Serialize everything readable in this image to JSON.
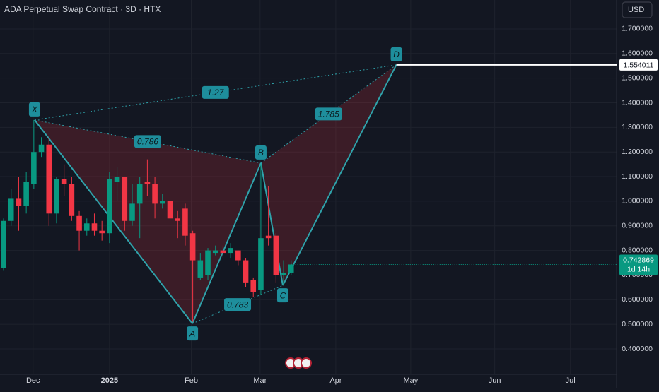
{
  "header": {
    "title": "ADA Perpetual Swap Contract · 3D · HTX",
    "currency": "USD"
  },
  "chart_data": {
    "type": "candlestick",
    "xlim": [
      -0.47,
      81.0
    ],
    "ylim": [
      0.2967,
      1.8175
    ],
    "xticks": [
      {
        "value": 3.9,
        "label": "Dec"
      },
      {
        "value": 14.0,
        "label": "2025"
      },
      {
        "value": 24.8,
        "label": "Feb"
      },
      {
        "value": 33.9,
        "label": "Mar"
      },
      {
        "value": 43.9,
        "label": "Apr"
      },
      {
        "value": 53.8,
        "label": "May"
      },
      {
        "value": 64.9,
        "label": "Jun"
      },
      {
        "value": 74.9,
        "label": "Jul"
      }
    ],
    "yticks": [
      {
        "value": 0.4,
        "label": "0.400000"
      },
      {
        "value": 0.5,
        "label": "0.500000"
      },
      {
        "value": 0.6,
        "label": "0.600000"
      },
      {
        "value": 0.7,
        "label": "0.700000"
      },
      {
        "value": 0.8,
        "label": "0.800000"
      },
      {
        "value": 0.9,
        "label": "0.900000"
      },
      {
        "value": 1.0,
        "label": "1.000000"
      },
      {
        "value": 1.1,
        "label": "1.100000"
      },
      {
        "value": 1.2,
        "label": "1.200000"
      },
      {
        "value": 1.3,
        "label": "1.300000"
      },
      {
        "value": 1.4,
        "label": "1.400000"
      },
      {
        "value": 1.5,
        "label": "1.500000"
      },
      {
        "value": 1.6,
        "label": "1.600000"
      },
      {
        "value": 1.7,
        "label": "1.700000"
      }
    ],
    "open": [
      0.73,
      0.92,
      1.01,
      0.98,
      1.07,
      1.2,
      1.23,
      0.95,
      1.09,
      1.07,
      0.94,
      0.88,
      0.91,
      0.88,
      0.87,
      1.08,
      1.1,
      0.92,
      0.99,
      1.08,
      1.07,
      0.99,
      1.0,
      0.93,
      0.97,
      0.87,
      0.69,
      0.7,
      0.79,
      0.8,
      0.79,
      0.8,
      0.76,
      0.68,
      0.64,
      0.86,
      0.86,
      0.7,
      0.71
    ],
    "high": [
      0.93,
      1.05,
      1.1,
      1.12,
      1.33,
      1.26,
      1.26,
      1.1,
      1.15,
      1.1,
      0.96,
      0.93,
      0.95,
      0.92,
      1.12,
      1.14,
      1.1,
      1.07,
      1.1,
      1.17,
      1.1,
      1.03,
      1.04,
      0.96,
      0.99,
      0.88,
      0.79,
      0.81,
      0.82,
      0.82,
      0.83,
      0.8,
      0.77,
      0.69,
      1.15,
      1.06,
      0.87,
      0.76,
      0.76
    ],
    "low": [
      0.72,
      0.9,
      0.88,
      0.95,
      1.05,
      1.18,
      0.9,
      0.91,
      1.02,
      0.92,
      0.8,
      0.86,
      0.86,
      0.84,
      0.83,
      1.0,
      0.88,
      0.9,
      0.85,
      1.02,
      0.93,
      0.97,
      0.88,
      0.85,
      0.82,
      0.51,
      0.68,
      0.68,
      0.78,
      0.77,
      0.77,
      0.74,
      0.65,
      0.61,
      0.62,
      0.82,
      0.67,
      0.66,
      0.7
    ],
    "close": [
      0.92,
      1.01,
      0.98,
      1.08,
      1.2,
      1.23,
      0.95,
      1.09,
      1.07,
      0.94,
      0.88,
      0.91,
      0.88,
      0.87,
      1.09,
      1.1,
      0.92,
      0.99,
      1.07,
      1.07,
      0.99,
      1.0,
      0.93,
      0.92,
      0.86,
      0.76,
      0.76,
      0.8,
      0.8,
      0.79,
      0.81,
      0.76,
      0.67,
      0.63,
      0.85,
      0.85,
      0.7,
      0.71,
      0.743
    ],
    "up_color": "#089981",
    "down_color": "#f23645",
    "pattern": {
      "color": "#2fa3ab",
      "points": [
        {
          "label": "X",
          "x": 4.1,
          "y": 1.33
        },
        {
          "label": "A",
          "x": 24.95,
          "y": 0.503
        },
        {
          "label": "B",
          "x": 34.0,
          "y": 1.155
        },
        {
          "label": "C",
          "x": 36.9,
          "y": 0.658
        },
        {
          "label": "D",
          "x": 51.9,
          "y": 1.554011
        }
      ],
      "ratios": [
        1.27,
        0.786,
        1.785,
        0.783
      ]
    },
    "target_price": 1.554011,
    "last_price": 0.742869,
    "countdown": "1d 14h"
  }
}
